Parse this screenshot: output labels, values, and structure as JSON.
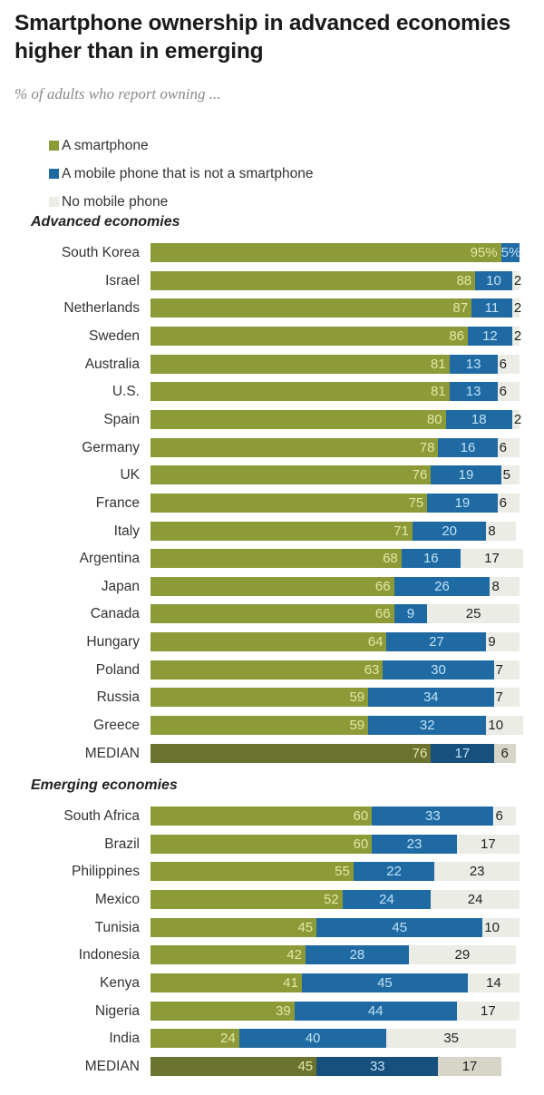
{
  "chart_data": {
    "type": "bar",
    "orientation": "horizontal-stacked",
    "title": "Smartphone ownership in advanced economies higher than in emerging",
    "subtitle": "% of adults who report owning ...",
    "xlim": [
      0,
      100
    ],
    "legend": {
      "placement": "top-left",
      "entries": [
        {
          "label": "A smartphone",
          "color": "#8c9a37"
        },
        {
          "label": "A mobile phone that is not a smartphone",
          "color": "#1f6aa3"
        },
        {
          "label": "No mobile phone",
          "color": "#ecece6"
        }
      ]
    },
    "series": [
      {
        "name": "A smartphone",
        "color": "#8c9a37"
      },
      {
        "name": "A mobile phone that is not a smartphone",
        "color": "#1f6aa3"
      },
      {
        "name": "No mobile phone",
        "color": "#ecece6"
      }
    ],
    "groups": [
      {
        "name": "Advanced economies",
        "rows": [
          {
            "category": "South Korea",
            "values": [
              95,
              5,
              0
            ],
            "labels": [
              "95%",
              "5%",
              ""
            ]
          },
          {
            "category": "Israel",
            "values": [
              88,
              10,
              2
            ],
            "labels": [
              "88",
              "10",
              "2"
            ]
          },
          {
            "category": "Netherlands",
            "values": [
              87,
              11,
              2
            ],
            "labels": [
              "87",
              "11",
              "2"
            ]
          },
          {
            "category": "Sweden",
            "values": [
              86,
              12,
              2
            ],
            "labels": [
              "86",
              "12",
              "2"
            ]
          },
          {
            "category": "Australia",
            "values": [
              81,
              13,
              6
            ],
            "labels": [
              "81",
              "13",
              "6"
            ]
          },
          {
            "category": "U.S.",
            "values": [
              81,
              13,
              6
            ],
            "labels": [
              "81",
              "13",
              "6"
            ]
          },
          {
            "category": "Spain",
            "values": [
              80,
              18,
              2
            ],
            "labels": [
              "80",
              "18",
              "2"
            ]
          },
          {
            "category": "Germany",
            "values": [
              78,
              16,
              6
            ],
            "labels": [
              "78",
              "16",
              "6"
            ]
          },
          {
            "category": "UK",
            "values": [
              76,
              19,
              5
            ],
            "labels": [
              "76",
              "19",
              "5"
            ]
          },
          {
            "category": "France",
            "values": [
              75,
              19,
              6
            ],
            "labels": [
              "75",
              "19",
              "6"
            ]
          },
          {
            "category": "Italy",
            "values": [
              71,
              20,
              8
            ],
            "labels": [
              "71",
              "20",
              "8"
            ]
          },
          {
            "category": "Argentina",
            "values": [
              68,
              16,
              17
            ],
            "labels": [
              "68",
              "16",
              "17"
            ]
          },
          {
            "category": "Japan",
            "values": [
              66,
              26,
              8
            ],
            "labels": [
              "66",
              "26",
              "8"
            ]
          },
          {
            "category": "Canada",
            "values": [
              66,
              9,
              25
            ],
            "labels": [
              "66",
              "9",
              "25"
            ]
          },
          {
            "category": "Hungary",
            "values": [
              64,
              27,
              9
            ],
            "labels": [
              "64",
              "27",
              "9"
            ]
          },
          {
            "category": "Poland",
            "values": [
              63,
              30,
              7
            ],
            "labels": [
              "63",
              "30",
              "7"
            ]
          },
          {
            "category": "Russia",
            "values": [
              59,
              34,
              7
            ],
            "labels": [
              "59",
              "34",
              "7"
            ]
          },
          {
            "category": "Greece",
            "values": [
              59,
              32,
              10
            ],
            "labels": [
              "59",
              "32",
              "10"
            ]
          },
          {
            "category": "MEDIAN",
            "values": [
              76,
              17,
              6
            ],
            "labels": [
              "76",
              "17",
              "6"
            ],
            "median": true
          }
        ]
      },
      {
        "name": "Emerging economies",
        "rows": [
          {
            "category": "South Africa",
            "values": [
              60,
              33,
              6
            ],
            "labels": [
              "60",
              "33",
              "6"
            ]
          },
          {
            "category": "Brazil",
            "values": [
              60,
              23,
              17
            ],
            "labels": [
              "60",
              "23",
              "17"
            ]
          },
          {
            "category": "Philippines",
            "values": [
              55,
              22,
              23
            ],
            "labels": [
              "55",
              "22",
              "23"
            ]
          },
          {
            "category": "Mexico",
            "values": [
              52,
              24,
              24
            ],
            "labels": [
              "52",
              "24",
              "24"
            ]
          },
          {
            "category": "Tunisia",
            "values": [
              45,
              45,
              10
            ],
            "labels": [
              "45",
              "45",
              "10"
            ]
          },
          {
            "category": "Indonesia",
            "values": [
              42,
              28,
              29
            ],
            "labels": [
              "42",
              "28",
              "29"
            ]
          },
          {
            "category": "Kenya",
            "values": [
              41,
              45,
              14
            ],
            "labels": [
              "41",
              "45",
              "14"
            ]
          },
          {
            "category": "Nigeria",
            "values": [
              39,
              44,
              17
            ],
            "labels": [
              "39",
              "44",
              "17"
            ]
          },
          {
            "category": "India",
            "values": [
              24,
              40,
              35
            ],
            "labels": [
              "24",
              "40",
              "35"
            ]
          },
          {
            "category": "MEDIAN",
            "values": [
              45,
              33,
              17
            ],
            "labels": [
              "45",
              "33",
              "17"
            ],
            "median": true
          }
        ]
      }
    ]
  }
}
